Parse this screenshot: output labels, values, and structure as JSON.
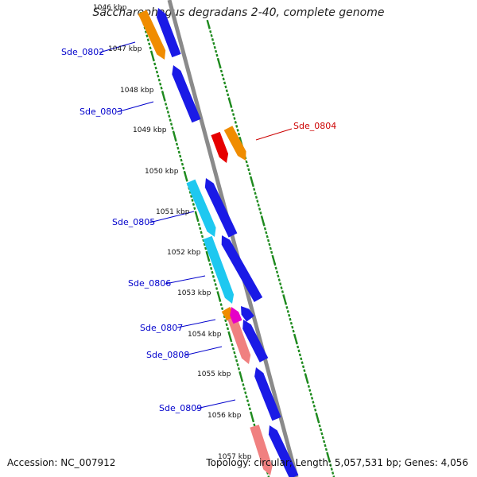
{
  "title": "Saccharophagus degradans 2-40, complete genome",
  "footer": {
    "accession": "Accession: NC_007912",
    "summary": "Topology: circular; Length: 5,057,531 bp; Genes: 4,056"
  },
  "colors": {
    "backbone": "#8a8a8a",
    "ticks": "#1e8a1e",
    "label_blue": "#0000cc",
    "label_red": "#cc0000",
    "gene_blue": "#1a1ae6",
    "gene_orange": "#f08c00",
    "gene_red": "#e60000",
    "gene_cyan": "#1ec8f0",
    "gene_pink": "#f08080",
    "gene_magenta": "#e600c8"
  },
  "kbp_labels": [
    "1046 kbp",
    "1047 kbp",
    "1048 kbp",
    "1049 kbp",
    "1050 kbp",
    "1051 kbp",
    "1052 kbp",
    "1053 kbp",
    "1054 kbp",
    "1055 kbp",
    "1056 kbp",
    "1057 kbp"
  ],
  "gene_labels": [
    {
      "name": "Sde_0802",
      "color": "label_blue"
    },
    {
      "name": "Sde_0803",
      "color": "label_blue"
    },
    {
      "name": "Sde_0804",
      "color": "label_red"
    },
    {
      "name": "Sde_0805",
      "color": "label_blue"
    },
    {
      "name": "Sde_0806",
      "color": "label_blue"
    },
    {
      "name": "Sde_0807",
      "color": "label_blue"
    },
    {
      "name": "Sde_0808",
      "color": "label_blue"
    },
    {
      "name": "Sde_0809",
      "color": "label_blue"
    }
  ],
  "genes": [
    {
      "strand": "forward",
      "color": "gene_blue"
    },
    {
      "strand": "forward",
      "color": "gene_blue"
    },
    {
      "strand": "forward",
      "color": "gene_blue"
    },
    {
      "strand": "forward",
      "color": "gene_blue"
    },
    {
      "strand": "forward",
      "color": "gene_blue"
    },
    {
      "strand": "forward",
      "color": "gene_blue"
    },
    {
      "strand": "forward",
      "color": "gene_blue"
    },
    {
      "strand": "forward",
      "color": "gene_blue"
    },
    {
      "strand": "reverse",
      "color": "gene_orange"
    },
    {
      "strand": "reverse",
      "color": "gene_cyan"
    },
    {
      "strand": "reverse",
      "color": "gene_cyan"
    },
    {
      "strand": "reverse",
      "color": "gene_orange"
    },
    {
      "strand": "reverse",
      "color": "gene_pink"
    },
    {
      "strand": "reverse",
      "color": "gene_pink"
    },
    {
      "strand": "reverse",
      "color": "gene_red"
    },
    {
      "strand": "reverse",
      "color": "gene_orange"
    },
    {
      "strand": "forward",
      "color": "gene_magenta"
    }
  ]
}
